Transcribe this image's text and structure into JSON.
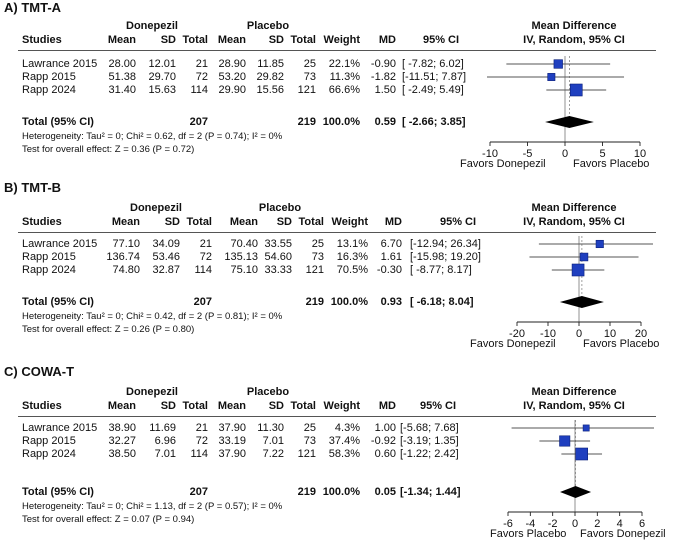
{
  "panels": [
    {
      "title": "A) TMT-A",
      "headers": {
        "group1": "Donepezil",
        "group2": "Placebo",
        "studies": "Studies",
        "mean": "Mean",
        "sd": "SD",
        "total": "Total",
        "weight": "Weight",
        "md": "MD",
        "ci": "95% CI",
        "effect_title1": "Mean Difference",
        "effect_title2": "IV, Random, 95% CI"
      },
      "rows": [
        {
          "study": "Lawrance 2015",
          "m1": "28.00",
          "sd1": "12.01",
          "n1": "21",
          "m2": "28.90",
          "sd2": "11.85",
          "n2": "25",
          "weight": "22.1%",
          "md": "-0.90",
          "ci": "[ -7.82; 6.02]"
        },
        {
          "study": "Rapp 2015",
          "m1": "51.38",
          "sd1": "29.70",
          "n1": "72",
          "m2": "53.20",
          "sd2": "29.82",
          "n2": "73",
          "weight": "11.3%",
          "md": "-1.82",
          "ci": "[-11.51; 7.87]"
        },
        {
          "study": "Rapp 2024",
          "m1": "31.40",
          "sd1": "15.63",
          "n1": "114",
          "m2": "29.90",
          "sd2": "15.56",
          "n2": "121",
          "weight": "66.6%",
          "md": "1.50",
          "ci": "[ -2.49; 5.49]"
        }
      ],
      "total": {
        "label": "Total (95% CI)",
        "n1": "207",
        "n2": "219",
        "weight": "100.0%",
        "md": "0.59",
        "ci": "[ -2.66; 3.85]"
      },
      "heterogeneity": "Heterogeneity: Tau² = 0; Chi² = 0.62, df = 2 (P = 0.74); I² = 0%",
      "overall": "Test for overall effect: Z = 0.36 (P = 0.72)",
      "favors_left": "Favors Donepezil",
      "favors_right": "Favors Placebo",
      "axis_ticks": [
        -10,
        -5,
        0,
        5,
        10
      ],
      "tick_labels": [
        "-10",
        "-5",
        "0",
        "5",
        "10"
      ]
    },
    {
      "title": "B) TMT-B",
      "headers": {
        "group1": "Donepezil",
        "group2": "Placebo",
        "studies": "Studies",
        "mean": "Mean",
        "sd": "SD",
        "total": "Total",
        "weight": "Weight",
        "md": "MD",
        "ci": "95% CI",
        "effect_title1": "Mean Difference",
        "effect_title2": "IV, Random, 95% CI"
      },
      "rows": [
        {
          "study": "Lawrance 2015",
          "m1": "77.10",
          "sd1": "34.09",
          "n1": "21",
          "m2": "70.40",
          "sd2": "33.55",
          "n2": "25",
          "weight": "13.1%",
          "md": "6.70",
          "ci": "[-12.94; 26.34]"
        },
        {
          "study": "Rapp 2015",
          "m1": "136.74",
          "sd1": "53.46",
          "n1": "72",
          "m2": "135.13",
          "sd2": "54.60",
          "n2": "73",
          "weight": "16.3%",
          "md": "1.61",
          "ci": "[-15.98; 19.20]"
        },
        {
          "study": "Rapp 2024",
          "m1": "74.80",
          "sd1": "32.87",
          "n1": "114",
          "m2": "75.10",
          "sd2": "33.33",
          "n2": "121",
          "weight": "70.5%",
          "md": "-0.30",
          "ci": "[ -8.77; 8.17]"
        }
      ],
      "total": {
        "label": "Total (95% CI)",
        "n1": "207",
        "n2": "219",
        "weight": "100.0%",
        "md": "0.93",
        "ci": "[ -6.18; 8.04]"
      },
      "heterogeneity": "Heterogeneity: Tau² = 0; Chi² = 0.42, df = 2 (P = 0.81); I² = 0%",
      "overall": "Test for overall effect: Z = 0.26 (P = 0.80)",
      "favors_left": "Favors Donepezil",
      "favors_right": "Favors Placebo",
      "axis_ticks": [
        -20,
        -10,
        0,
        10,
        20
      ],
      "tick_labels": [
        "-20",
        "-10",
        "0",
        "10",
        "20"
      ]
    },
    {
      "title": "C) COWA-T",
      "headers": {
        "group1": "Donepezil",
        "group2": "Placebo",
        "studies": "Studies",
        "mean": "Mean",
        "sd": "SD",
        "total": "Total",
        "weight": "Weight",
        "md": "MD",
        "ci": "95% CI",
        "effect_title1": "Mean Difference",
        "effect_title2": "IV, Random, 95% CI"
      },
      "rows": [
        {
          "study": "Lawrance 2015",
          "m1": "38.90",
          "sd1": "11.69",
          "n1": "21",
          "m2": "37.90",
          "sd2": "11.30",
          "n2": "25",
          "weight": "4.3%",
          "md": "1.00",
          "ci": "[-5.68; 7.68]"
        },
        {
          "study": "Rapp 2015",
          "m1": "32.27",
          "sd1": "6.96",
          "n1": "72",
          "m2": "33.19",
          "sd2": "7.01",
          "n2": "73",
          "weight": "37.4%",
          "md": "-0.92",
          "ci": "[-3.19; 1.35]"
        },
        {
          "study": "Rapp 2024",
          "m1": "38.50",
          "sd1": "7.01",
          "n1": "114",
          "m2": "37.90",
          "sd2": "7.22",
          "n2": "121",
          "weight": "58.3%",
          "md": "0.60",
          "ci": "[-1.22; 2.42]"
        }
      ],
      "total": {
        "label": "Total (95% CI)",
        "n1": "207",
        "n2": "219",
        "weight": "100.0%",
        "md": "0.05",
        "ci": "[-1.34; 1.44]"
      },
      "heterogeneity": "Heterogeneity: Tau² = 0; Chi² = 1.13, df = 2 (P = 0.57); I² = 0%",
      "overall": "Test for overall effect: Z = 0.07 (P = 0.94)",
      "favors_left": "Favors Placebo",
      "favors_right": "Favors Donepezil",
      "axis_ticks": [
        -6,
        -4,
        -2,
        0,
        2,
        4,
        6
      ],
      "tick_labels": [
        "-6",
        "-4",
        "-2",
        "0",
        "2",
        "4",
        "6"
      ]
    }
  ],
  "chart_data": [
    {
      "type": "forest",
      "title": "A) TMT-A",
      "xlabel": "Mean Difference",
      "xlim": [
        -10,
        10
      ],
      "studies": [
        "Lawrance 2015",
        "Rapp 2015",
        "Rapp 2024"
      ],
      "md": [
        -0.9,
        -1.82,
        1.5
      ],
      "ci_low": [
        -7.82,
        -11.51,
        -2.49
      ],
      "ci_high": [
        6.02,
        7.87,
        5.49
      ],
      "weights": [
        22.1,
        11.3,
        66.6
      ],
      "pooled": {
        "md": 0.59,
        "ci_low": -2.66,
        "ci_high": 3.85
      },
      "colors": {
        "square": "#1f3fbf",
        "diamond": "#000000",
        "line": "#555555"
      }
    },
    {
      "type": "forest",
      "title": "B) TMT-B",
      "xlabel": "Mean Difference",
      "xlim": [
        -20,
        20
      ],
      "studies": [
        "Lawrance 2015",
        "Rapp 2015",
        "Rapp 2024"
      ],
      "md": [
        6.7,
        1.61,
        -0.3
      ],
      "ci_low": [
        -12.94,
        -15.98,
        -8.77
      ],
      "ci_high": [
        26.34,
        19.2,
        8.17
      ],
      "weights": [
        13.1,
        16.3,
        70.5
      ],
      "pooled": {
        "md": 0.93,
        "ci_low": -6.18,
        "ci_high": 8.04
      },
      "colors": {
        "square": "#1f3fbf",
        "diamond": "#000000",
        "line": "#555555"
      }
    },
    {
      "type": "forest",
      "title": "C) COWA-T",
      "xlabel": "Mean Difference",
      "xlim": [
        -6,
        6
      ],
      "studies": [
        "Lawrance 2015",
        "Rapp 2015",
        "Rapp 2024"
      ],
      "md": [
        1.0,
        -0.92,
        0.6
      ],
      "ci_low": [
        -5.68,
        -3.19,
        -1.22
      ],
      "ci_high": [
        7.68,
        1.35,
        2.42
      ],
      "weights": [
        4.3,
        37.4,
        58.3
      ],
      "pooled": {
        "md": 0.05,
        "ci_low": -1.34,
        "ci_high": 1.44
      },
      "colors": {
        "square": "#1f3fbf",
        "diamond": "#000000",
        "line": "#555555"
      }
    }
  ]
}
